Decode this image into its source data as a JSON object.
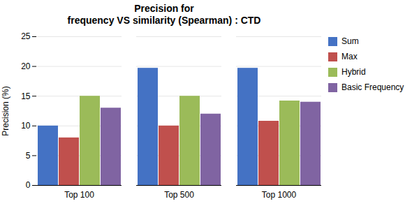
{
  "chart_data": {
    "type": "bar",
    "title": "Precision for\nfrequency VS similarity (Spearman) : CTD",
    "ylabel": "Precision (%)",
    "categories": [
      "Top 100",
      "Top 500",
      "Top 1000"
    ],
    "series": [
      {
        "name": "Sum",
        "color": "#4472C4",
        "values": [
          10.0,
          19.7,
          19.7
        ]
      },
      {
        "name": "Max",
        "color": "#C0504D",
        "values": [
          8.0,
          10.0,
          10.8
        ]
      },
      {
        "name": "Hybrid",
        "color": "#9BBB59",
        "values": [
          15.0,
          15.0,
          14.2
        ]
      },
      {
        "name": "Basic Frequency",
        "color": "#8064A2",
        "values": [
          13.0,
          12.0,
          14.0
        ]
      }
    ],
    "ylim": [
      0,
      25
    ],
    "yticks": [
      0,
      5,
      10,
      15,
      20,
      25
    ],
    "grid": true,
    "legend": "right"
  }
}
